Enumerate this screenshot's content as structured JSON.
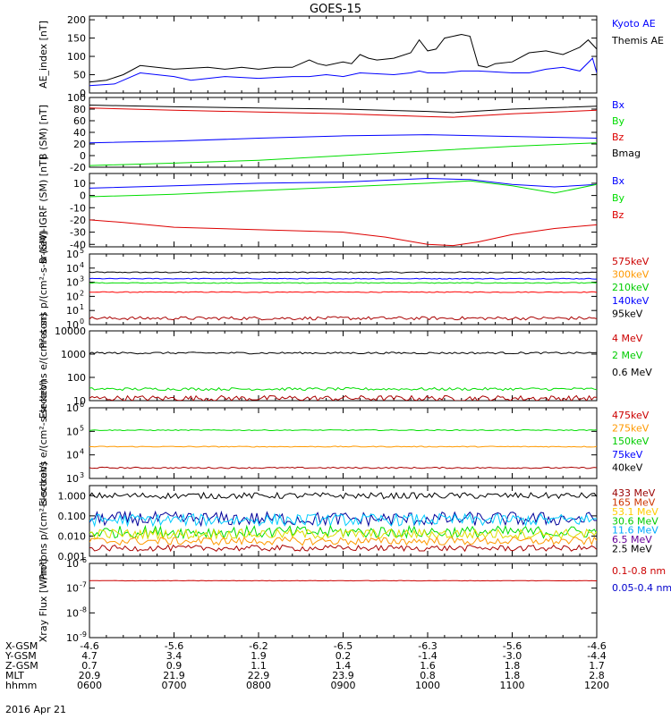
{
  "title": "GOES-15",
  "date_label": "2016 Apr 21",
  "chart_data": [
    {
      "type": "line",
      "ylabel": "AE_index [nT]",
      "yticks": [
        "0",
        "50",
        "100",
        "150",
        "200"
      ],
      "ylim": [
        0,
        210
      ],
      "series": [
        {
          "name": "Kyoto AE",
          "color": "#0000ff",
          "x": [
            600,
            630,
            660,
            700,
            720,
            760,
            800,
            840,
            860,
            880,
            900,
            920,
            960,
            980,
            990,
            1000,
            1020,
            1040,
            1060,
            1100,
            1120,
            1140,
            1160,
            1180,
            1195,
            1200
          ],
          "values": [
            20,
            25,
            55,
            45,
            35,
            45,
            40,
            45,
            45,
            50,
            45,
            55,
            50,
            55,
            60,
            55,
            55,
            60,
            60,
            55,
            55,
            65,
            70,
            60,
            95,
            55
          ]
        },
        {
          "name": "Themis AE",
          "color": "#000000",
          "x": [
            600,
            620,
            640,
            660,
            700,
            740,
            760,
            780,
            800,
            820,
            840,
            860,
            870,
            880,
            900,
            910,
            920,
            930,
            940,
            960,
            980,
            990,
            1000,
            1010,
            1020,
            1040,
            1050,
            1060,
            1070,
            1080,
            1100,
            1120,
            1140,
            1160,
            1180,
            1190,
            1200
          ],
          "values": [
            30,
            35,
            50,
            75,
            65,
            70,
            65,
            70,
            65,
            70,
            70,
            90,
            80,
            75,
            85,
            80,
            105,
            95,
            90,
            95,
            110,
            145,
            115,
            120,
            150,
            160,
            155,
            75,
            70,
            80,
            85,
            110,
            115,
            105,
            125,
            145,
            120
          ]
        }
      ]
    },
    {
      "type": "line",
      "ylabel": "B (SM) [nT]",
      "yticks": [
        "-20",
        "0",
        "20",
        "40",
        "60",
        "80",
        "100"
      ],
      "ylim": [
        -20,
        100
      ],
      "series": [
        {
          "name": "Bx",
          "color": "#0000ff",
          "x": [
            600,
            700,
            800,
            900,
            1000,
            1100,
            1200
          ],
          "values": [
            22,
            25,
            30,
            34,
            36,
            33,
            30
          ]
        },
        {
          "name": "By",
          "color": "#00dd00",
          "x": [
            600,
            700,
            800,
            900,
            1000,
            1100,
            1200
          ],
          "values": [
            -17,
            -13,
            -8,
            0,
            8,
            16,
            22
          ]
        },
        {
          "name": "Bz",
          "color": "#dd0000",
          "x": [
            600,
            700,
            800,
            900,
            1000,
            1030,
            1100,
            1200
          ],
          "values": [
            82,
            78,
            75,
            72,
            67,
            66,
            72,
            78
          ]
        },
        {
          "name": "Bmag",
          "color": "#000000",
          "x": [
            600,
            700,
            800,
            900,
            1000,
            1030,
            1100,
            1200
          ],
          "values": [
            87,
            84,
            82,
            80,
            76,
            74,
            80,
            85
          ]
        }
      ]
    },
    {
      "type": "line",
      "ylabel": "B (SM)-IGRF (SM) [nT]",
      "yticks": [
        "-40",
        "-30",
        "-20",
        "-10",
        "0",
        "10"
      ],
      "ylim": [
        -42,
        18
      ],
      "series": [
        {
          "name": "Bx",
          "color": "#0000ff",
          "x": [
            600,
            700,
            800,
            900,
            1000,
            1050,
            1100,
            1150,
            1200
          ],
          "values": [
            6,
            8,
            10,
            11,
            14,
            13,
            9,
            7,
            9
          ]
        },
        {
          "name": "By",
          "color": "#00dd00",
          "x": [
            600,
            700,
            800,
            900,
            1000,
            1050,
            1100,
            1150,
            1200
          ],
          "values": [
            -1,
            1,
            4,
            7,
            10,
            12,
            8,
            2,
            9
          ]
        },
        {
          "name": "Bz",
          "color": "#dd0000",
          "x": [
            600,
            640,
            700,
            800,
            900,
            950,
            1000,
            1030,
            1060,
            1100,
            1150,
            1200
          ],
          "values": [
            -20,
            -22,
            -26,
            -28,
            -30,
            -34,
            -40,
            -41,
            -38,
            -32,
            -27,
            -24
          ]
        }
      ]
    },
    {
      "type": "line",
      "log": true,
      "ylabel": "Protons p/(cm²-s-sr-keV)",
      "ytick_powers": [
        0,
        1,
        2,
        3,
        4,
        5
      ],
      "ylim_exp": [
        0,
        5
      ],
      "series": [
        {
          "name": "575keV",
          "color": "#000000",
          "level": 3.7,
          "noise": 0.04
        },
        {
          "name": "300keV",
          "color": "#ff0000",
          "level": 2.3,
          "noise": 0.03
        },
        {
          "name": "210keV",
          "color": "#00dd00",
          "level": 2.95,
          "noise": 0.03
        },
        {
          "name": "140keV",
          "color": "#0000ff",
          "level": 3.25,
          "noise": 0.03
        },
        {
          "name": "95keV",
          "color": "#aa0000",
          "level": 0.45,
          "noise": 0.12
        }
      ],
      "legend_colors": [
        "#cc0000",
        "#ff9900",
        "#00cc00",
        "#0000ff",
        "#000000"
      ]
    },
    {
      "type": "line",
      "log": true,
      "ylabel": "Electrons e/(cm²-s-sr)",
      "yticks": [
        "10",
        "100",
        "1000",
        "10000"
      ],
      "ylim_exp": [
        1,
        4
      ],
      "series": [
        {
          "name": "4 MeV",
          "color": "#aa0000",
          "level": 1.1,
          "noise": 0.12
        },
        {
          "name": "2 MeV",
          "color": "#00dd00",
          "level": 1.5,
          "noise": 0.06
        },
        {
          "name": "0.6 MeV",
          "color": "#000000",
          "level": 3.05,
          "noise": 0.04
        }
      ],
      "legend_colors": [
        "#cc0000",
        "#00cc00",
        "#000000"
      ]
    },
    {
      "type": "line",
      "log": true,
      "ylabel": "Electrons e/(cm²-s-sr-keV)",
      "ytick_powers": [
        3,
        4,
        5,
        6
      ],
      "ylim_exp": [
        3,
        6
      ],
      "series": [
        {
          "name": "475keV",
          "color": "#aa0000",
          "level": 3.45,
          "noise": 0.03
        },
        {
          "name": "275keV",
          "color": "#ff9900",
          "level": 4.35,
          "noise": 0.02
        },
        {
          "name": "150keV",
          "color": "#00dd00",
          "level": 5.05,
          "noise": 0.02
        },
        {
          "name": "75keV",
          "color": "#0000ff",
          "level": 6.3,
          "noise": 0.0
        },
        {
          "name": "40keV",
          "color": "#000000",
          "level": 6.6,
          "noise": 0.0
        }
      ],
      "legend_colors": [
        "#cc0000",
        "#ff9900",
        "#00cc00",
        "#0000ff",
        "#000000"
      ]
    },
    {
      "type": "line",
      "log": true,
      "ylabel": "Protons p/(cm²-s-sr-keV)",
      "yticks": [
        "0.001",
        "0.010",
        "0.100",
        "1.000"
      ],
      "ylim_exp": [
        -3,
        0.5
      ],
      "series": [
        {
          "name": "433 MeV",
          "color": "#000000",
          "level": 0.0,
          "noise": 0.15
        },
        {
          "name": "165 MeV",
          "color": "#000099",
          "level": -1.15,
          "noise": 0.35
        },
        {
          "name": "53.1 MeV",
          "color": "#00ccff",
          "level": -1.2,
          "noise": 0.3
        },
        {
          "name": "30.6 MeV",
          "color": "#00dd00",
          "level": -1.8,
          "noise": 0.3
        },
        {
          "name": "11.6 MeV",
          "color": "#dddd00",
          "level": -1.9,
          "noise": 0.25
        },
        {
          "name": "6.5 MeV",
          "color": "#ff9900",
          "level": -2.25,
          "noise": 0.2
        },
        {
          "name": "2.5 MeV",
          "color": "#aa0000",
          "level": -2.6,
          "noise": 0.15
        }
      ],
      "legend_colors": [
        "#990000",
        "#cc3300",
        "#ffcc00",
        "#00cc00",
        "#00aaff",
        "#660099",
        "#000000"
      ]
    },
    {
      "type": "line",
      "log": true,
      "ylabel": "Xray Flux [W/m²]",
      "ytick_powers": [
        -9,
        -8,
        -7,
        -6
      ],
      "ytick_sign": "-",
      "ylim_exp": [
        -9,
        -6
      ],
      "series": [
        {
          "name": "0.1-0.8 nm",
          "color": "#cc0000",
          "level": -6.7,
          "noise": 0.01
        },
        {
          "name": "0.05-0.4 nm",
          "color": "#0000cc",
          "level": -10,
          "noise": 0.0
        }
      ],
      "legend_colors": [
        "#cc0000",
        "#0000cc"
      ]
    }
  ],
  "x_axis": {
    "ticks": [
      600,
      700,
      800,
      900,
      1000,
      1100,
      1200
    ],
    "rows": [
      {
        "label": "X-GSM",
        "values": [
          "-4.6",
          "-5.6",
          "-6.2",
          "-6.5",
          "-6.3",
          "-5.6",
          "-4.6"
        ]
      },
      {
        "label": "Y-GSM",
        "values": [
          "4.7",
          "3.4",
          "1.9",
          "0.2",
          "-1.4",
          "-3.0",
          "-4.4"
        ]
      },
      {
        "label": "Z-GSM",
        "values": [
          "0.7",
          "0.9",
          "1.1",
          "1.4",
          "1.6",
          "1.8",
          "1.7"
        ]
      },
      {
        "label": "MLT",
        "values": [
          "20.9",
          "21.9",
          "22.9",
          "23.9",
          "0.8",
          "1.8",
          "2.8"
        ]
      },
      {
        "label": "hhmm",
        "values": [
          "0600",
          "0700",
          "0800",
          "0900",
          "1000",
          "1100",
          "1200"
        ]
      }
    ]
  }
}
